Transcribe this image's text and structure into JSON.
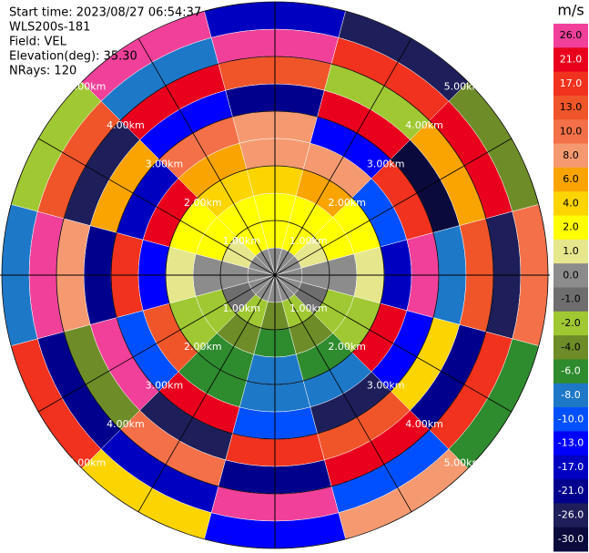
{
  "chart_data": {
    "type": "ppi",
    "header": [
      "Start time: 2023/08/27 06:54:37",
      "WLS200s-181",
      "Field: VEL",
      "Elevation(deg): 35.30",
      "NRays: 120"
    ],
    "rings_km": [
      1,
      2,
      3,
      4,
      5
    ],
    "ring_labels": [
      "1.00km",
      "2.00km",
      "3.00km",
      "4.00km",
      "5.00km"
    ],
    "field": {
      "azimuths_deg": [
        0,
        30,
        60,
        90,
        120,
        150,
        180,
        210,
        240,
        270,
        300,
        330
      ],
      "range_edges_km": [
        0,
        0.5,
        1,
        1.5,
        2,
        2.5,
        3,
        3.5,
        4,
        4.5,
        5
      ],
      "values": [
        [
          0,
          2,
          2,
          4,
          8,
          8,
          -21,
          13,
          26,
          -17
        ],
        [
          0,
          2,
          2,
          6,
          8,
          -13,
          21,
          -2,
          17,
          -26
        ],
        [
          0,
          1,
          2,
          2,
          -10,
          17,
          -30,
          6,
          21,
          -4
        ],
        [
          0,
          0,
          0,
          1,
          -17,
          26,
          -8,
          13,
          -26,
          10
        ],
        [
          0,
          -1,
          -2,
          -2,
          21,
          -13,
          4,
          -21,
          17,
          -6
        ],
        [
          0,
          -2,
          -4,
          -6,
          -8,
          -26,
          13,
          21,
          -10,
          8
        ],
        [
          0,
          -4,
          -6,
          -8,
          -8,
          -10,
          17,
          -21,
          26,
          -13
        ],
        [
          0,
          -2,
          -4,
          -6,
          -6,
          21,
          -26,
          10,
          -17,
          4
        ],
        [
          0,
          -1,
          -2,
          -2,
          13,
          -10,
          26,
          -4,
          -21,
          17
        ],
        [
          0,
          0,
          0,
          1,
          -13,
          17,
          -21,
          8,
          26,
          -8
        ],
        [
          0,
          1,
          2,
          2,
          21,
          -17,
          6,
          -26,
          13,
          -2
        ],
        [
          0,
          2,
          2,
          4,
          6,
          10,
          -13,
          21,
          -8,
          26
        ]
      ]
    },
    "colorbar": {
      "title": "m/s",
      "ticks": [
        {
          "value": 26,
          "label": "26.0"
        },
        {
          "value": 21,
          "label": "21.0"
        },
        {
          "value": 17,
          "label": "17.0"
        },
        {
          "value": 13,
          "label": "13.0"
        },
        {
          "value": 10,
          "label": "10.0"
        },
        {
          "value": 8,
          "label": "8.0"
        },
        {
          "value": 6,
          "label": "6.0"
        },
        {
          "value": 4,
          "label": "4.0"
        },
        {
          "value": 2,
          "label": "2.0"
        },
        {
          "value": 1,
          "label": "1.0"
        },
        {
          "value": 0,
          "label": "0.0"
        },
        {
          "value": -1,
          "label": "-1.0"
        },
        {
          "value": -2,
          "label": "-2.0"
        },
        {
          "value": -4,
          "label": "-4.0"
        },
        {
          "value": -6,
          "label": "-6.0"
        },
        {
          "value": -8,
          "label": "-8.0"
        },
        {
          "value": -10,
          "label": "-10.0"
        },
        {
          "value": -13,
          "label": "-13.0"
        },
        {
          "value": -17,
          "label": "-17.0"
        },
        {
          "value": -21,
          "label": "-21.0"
        },
        {
          "value": -26,
          "label": "-26.0"
        },
        {
          "value": -30,
          "label": "-30.0"
        }
      ],
      "colors": [
        "#f0409a",
        "#e8001c",
        "#f0321e",
        "#f0552a",
        "#f37048",
        "#f59a70",
        "#f9a400",
        "#fcd400",
        "#ffff00",
        "#e6e68c",
        "#8c8c8c",
        "#6e6e6e",
        "#a0c832",
        "#6e8c28",
        "#2e8b2e",
        "#1e78c8",
        "#0050ff",
        "#0000ff",
        "#0000c0",
        "#00008c",
        "#1e1e5a",
        "#0a0a3c"
      ]
    }
  }
}
